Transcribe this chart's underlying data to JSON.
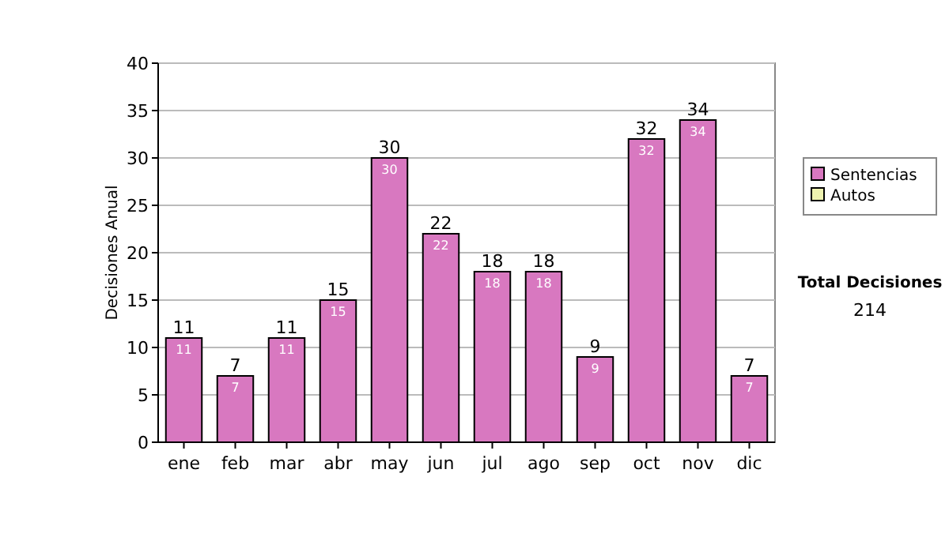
{
  "chart_data": {
    "type": "bar",
    "stacked": true,
    "ylabel": "Decisiones Anual",
    "categories": [
      "ene",
      "feb",
      "mar",
      "abr",
      "may",
      "jun",
      "jul",
      "ago",
      "sep",
      "oct",
      "nov",
      "dic"
    ],
    "series": [
      {
        "name": "Sentencias",
        "color": "#d878c0",
        "values": [
          11,
          7,
          11,
          15,
          30,
          22,
          18,
          18,
          9,
          32,
          34,
          7
        ]
      },
      {
        "name": "Autos",
        "color": "#eef2b0",
        "values": [
          null,
          null,
          null,
          null,
          null,
          null,
          null,
          null,
          null,
          null,
          null,
          null
        ]
      }
    ],
    "totals": [
      "11",
      "7",
      "11",
      "15",
      "30",
      "22",
      "18",
      "18",
      "9",
      "32",
      "34",
      "7"
    ],
    "data_labels": true,
    "ylim": [
      0,
      40
    ],
    "yticks": [
      0,
      5,
      10,
      15,
      20,
      25,
      30,
      35,
      40
    ],
    "grid": "y",
    "legend": "right",
    "annotations": [
      "Total Decisiones",
      "214"
    ]
  }
}
